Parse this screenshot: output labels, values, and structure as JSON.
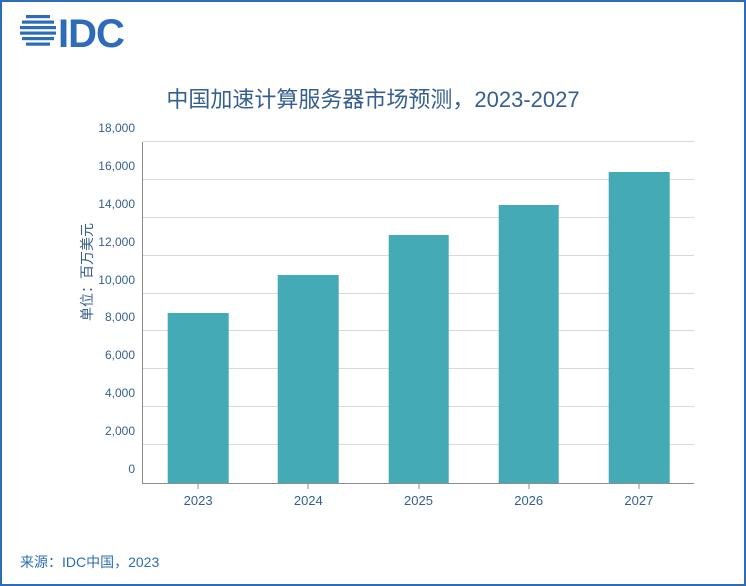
{
  "logo": {
    "text": "IDC",
    "color": "#2d6cb8"
  },
  "chart": {
    "type": "bar",
    "title": "中国加速计算服务器市场预测，2023-2027",
    "title_fontsize": 22,
    "title_color": "#365f91",
    "y_axis_label": "单位：百万美元",
    "label_fontsize": 14,
    "label_color": "#365f91",
    "categories": [
      "2023",
      "2024",
      "2025",
      "2026",
      "2027"
    ],
    "values": [
      9000,
      11000,
      13100,
      14700,
      16400
    ],
    "bar_color": "#44aab5",
    "bar_width_pct": 11,
    "ylim": [
      0,
      18000
    ],
    "ytick_step": 2000,
    "y_ticks": [
      "0",
      "2,000",
      "4,000",
      "6,000",
      "8,000",
      "10,000",
      "12,000",
      "14,000",
      "16,000",
      "18,000"
    ],
    "background_color": "#ffffff",
    "grid_color": "#d9d9d9",
    "axis_color": "#8c8c8c",
    "tick_fontsize": 12,
    "tick_color": "#365f91"
  },
  "source": {
    "text": "来源：IDC中国，2023",
    "color": "#2d6cb8",
    "fontsize": 14
  },
  "border_color": "#2d6cb8"
}
